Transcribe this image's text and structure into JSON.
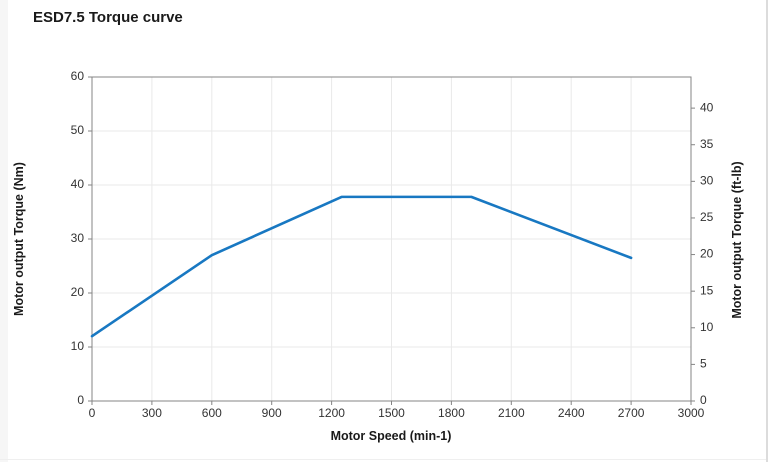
{
  "page": {
    "title": "ESD7.5 Torque curve"
  },
  "colors": {
    "line": "#1878c2",
    "grid": "#e9e9e9",
    "spine": "#848484",
    "tick_text": "#333333",
    "title_text": "#1a1a1a",
    "background": "#ffffff"
  },
  "chart_data": {
    "type": "line",
    "title": "ESD7.5 Torque curve",
    "xlabel": "Motor Speed (min-1)",
    "ylabel_left": "Motor output Torque (Nm)",
    "ylabel_right": "Motor output Torque (ft-lb)",
    "xlim": [
      0,
      3000
    ],
    "ylim_left": [
      0,
      60
    ],
    "ylim_right": [
      0,
      44.25
    ],
    "x_ticks": [
      0,
      300,
      600,
      900,
      1200,
      1500,
      1800,
      2100,
      2400,
      2700,
      3000
    ],
    "y_left_ticks": [
      0,
      10,
      20,
      30,
      40,
      50,
      60
    ],
    "y_right_ticks": [
      0,
      5,
      10,
      15,
      20,
      25,
      30,
      35,
      40
    ],
    "grid": true,
    "legend": "none",
    "series": [
      {
        "name": "Motor output Torque (Nm)",
        "color": "#1878c2",
        "points": [
          [
            0,
            12
          ],
          [
            600,
            27
          ],
          [
            1250,
            37.8
          ],
          [
            1900,
            37.8
          ],
          [
            2700,
            26.5
          ]
        ]
      }
    ]
  }
}
